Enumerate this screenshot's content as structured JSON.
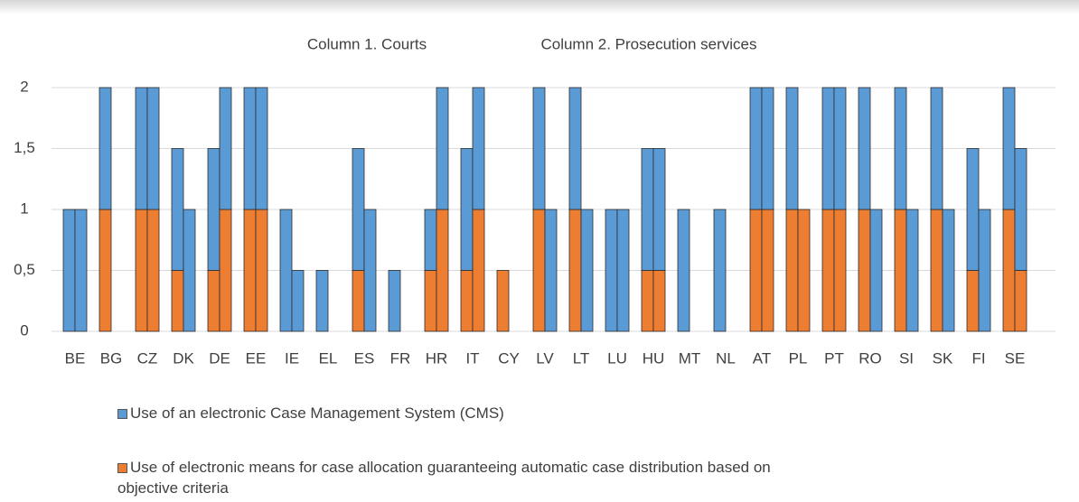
{
  "chart_data": {
    "type": "grouped_stacked_bar",
    "categories": [
      "BE",
      "BG",
      "CZ",
      "DK",
      "DE",
      "EE",
      "IE",
      "EL",
      "ES",
      "FR",
      "HR",
      "IT",
      "CY",
      "LV",
      "LT",
      "LU",
      "HU",
      "MT",
      "NL",
      "AT",
      "PL",
      "PT",
      "RO",
      "SI",
      "SK",
      "FI",
      "SE"
    ],
    "series": [
      {
        "name": "Use of an electronic Case Management System (CMS)",
        "color": "#5b9bd5"
      },
      {
        "name": "Use of electronic means for case allocation guaranteeing automatic case distribution based on objective criteria",
        "color": "#ed7d31"
      }
    ],
    "columns": [
      {
        "name": "Column 1. Courts",
        "stacks": [
          [
            1,
            1,
            1,
            1,
            1,
            1,
            1,
            0.5,
            1,
            0.5,
            0.5,
            1,
            0,
            1,
            1,
            1,
            1,
            1,
            1,
            1,
            1,
            1,
            1,
            1,
            1,
            1,
            1
          ],
          [
            0,
            1,
            1,
            0.5,
            0.5,
            1,
            0,
            0,
            0.5,
            0,
            0.5,
            0.5,
            0.5,
            1,
            1,
            0,
            0.5,
            0,
            0,
            1,
            1,
            1,
            1,
            1,
            1,
            0.5,
            1
          ]
        ]
      },
      {
        "name": "Column 2. Prosecution services",
        "stacks": [
          [
            1,
            0,
            1,
            1,
            1,
            1,
            0.5,
            0,
            1,
            0,
            1,
            1,
            0,
            1,
            1,
            1,
            1,
            0,
            0,
            1,
            0,
            1,
            1,
            1,
            1,
            1,
            1
          ],
          [
            0,
            0,
            1,
            0,
            1,
            1,
            0,
            0,
            0,
            0,
            1,
            1,
            0,
            0,
            0,
            0,
            0.5,
            0,
            0,
            1,
            1,
            1,
            0,
            0,
            0,
            0,
            0.5
          ]
        ]
      }
    ],
    "ylim": [
      0,
      2
    ],
    "yticks": [
      0,
      {
        "value": 0.5,
        "label": "0,5"
      },
      1,
      {
        "value": 1.5,
        "label": "1,5"
      },
      2
    ],
    "grid": true
  }
}
